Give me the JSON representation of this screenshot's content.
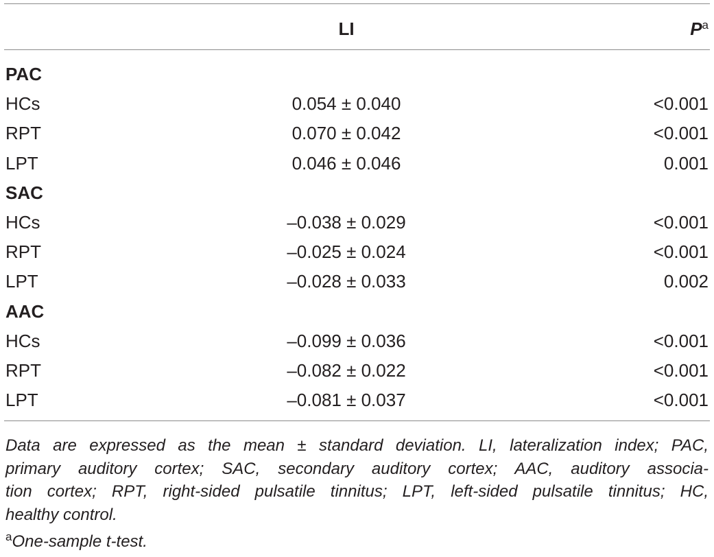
{
  "table": {
    "header": {
      "li": "LI",
      "p": "P",
      "p_sup": "a"
    },
    "groups": [
      {
        "name": "PAC",
        "rows": [
          [
            "HCs",
            "0.054 ± 0.040",
            "<0.001"
          ],
          [
            "RPT",
            "0.070 ± 0.042",
            "<0.001"
          ],
          [
            "LPT",
            "0.046 ± 0.046",
            "0.001"
          ]
        ]
      },
      {
        "name": "SAC",
        "rows": [
          [
            "HCs",
            "–0.038 ± 0.029",
            "<0.001"
          ],
          [
            "RPT",
            "–0.025 ± 0.024",
            "<0.001"
          ],
          [
            "LPT",
            "–0.028 ± 0.033",
            "0.002"
          ]
        ]
      },
      {
        "name": "AAC",
        "rows": [
          [
            "HCs",
            "–0.099 ± 0.036",
            "<0.001"
          ],
          [
            "RPT",
            "–0.082 ± 0.022",
            "<0.001"
          ],
          [
            "LPT",
            "–0.081 ± 0.037",
            "<0.001"
          ]
        ]
      }
    ]
  },
  "footnote": {
    "lines": [
      "Data are expressed as the mean ± standard deviation. LI, lateralization index; PAC,",
      "primary auditory cortex; SAC, secondary auditory cortex; AAC, auditory associa-",
      "tion cortex; RPT, right-sided pulsatile tinnitus; LPT, left-sided pulsatile tinnitus; HC,",
      "healthy control."
    ],
    "marker": "a",
    "text": "One-sample t-test."
  }
}
